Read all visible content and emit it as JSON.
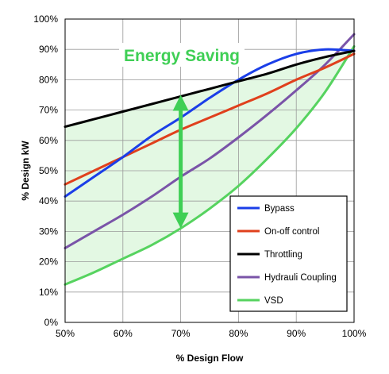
{
  "chart_data": {
    "type": "line",
    "xlabel": "% Design Flow",
    "ylabel": "% Design kW",
    "xlim": [
      50,
      100
    ],
    "ylim": [
      0,
      100
    ],
    "x_ticks": [
      "50%",
      "60%",
      "70%",
      "80%",
      "90%",
      "100%"
    ],
    "y_ticks": [
      "0%",
      "10%",
      "20%",
      "30%",
      "40%",
      "50%",
      "60%",
      "70%",
      "80%",
      "90%",
      "100%"
    ],
    "grid": true,
    "legend_position": "bottom-right",
    "annotation": "Energy Saving",
    "annotation_color": "#3fcf55",
    "saving_fill_color": "#e3f8e3",
    "saving_arrow_x": 70,
    "saving_arrow_range": [
      31,
      75
    ],
    "series": [
      {
        "name": "Bypass",
        "color": "#1a3ee8",
        "x": [
          50,
          55,
          60,
          65,
          70,
          75,
          80,
          85,
          90,
          95,
          100
        ],
        "y": [
          41.5,
          48,
          54.5,
          61.5,
          67.5,
          74,
          80,
          85,
          88.5,
          90,
          89.5
        ]
      },
      {
        "name": "On-off control",
        "color": "#e0401c",
        "x": [
          50,
          55,
          60,
          65,
          70,
          75,
          80,
          85,
          90,
          95,
          100
        ],
        "y": [
          45.5,
          50,
          54.5,
          59,
          63.5,
          67.5,
          71.5,
          75.5,
          80,
          84,
          88.5
        ]
      },
      {
        "name": "Throttling",
        "color": "#000000",
        "x": [
          50,
          55,
          60,
          65,
          70,
          75,
          80,
          85,
          90,
          95,
          100
        ],
        "y": [
          64.5,
          67,
          69.5,
          72,
          74.5,
          77,
          79.5,
          82,
          85,
          87.5,
          89.5
        ]
      },
      {
        "name": "Hydrauli Coupling",
        "color": "#7a54a8",
        "x": [
          50,
          55,
          60,
          65,
          70,
          75,
          80,
          85,
          90,
          95,
          100
        ],
        "y": [
          24.5,
          30,
          35.5,
          41.5,
          48,
          54,
          61,
          68.5,
          76.5,
          85,
          95
        ]
      },
      {
        "name": "VSD",
        "color": "#56d35f",
        "x": [
          50,
          55,
          60,
          65,
          70,
          75,
          80,
          85,
          90,
          95,
          100
        ],
        "y": [
          12.5,
          16.5,
          21,
          25.5,
          31,
          37.5,
          45,
          54,
          64,
          76,
          91
        ]
      }
    ]
  }
}
